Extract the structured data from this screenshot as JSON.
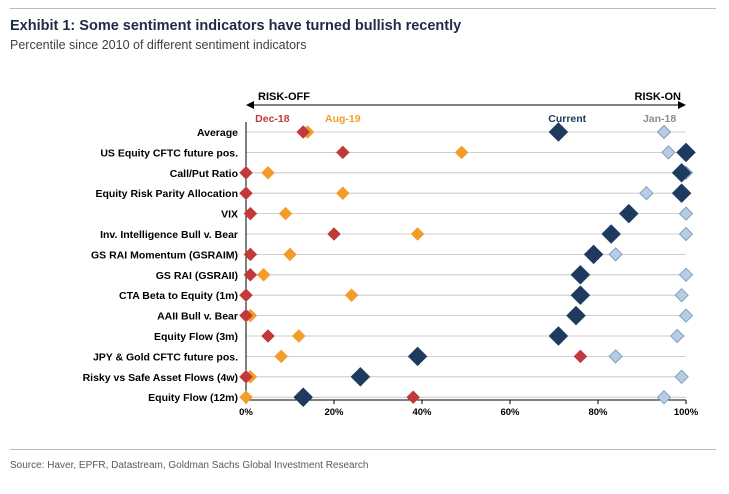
{
  "title": "Exhibit 1: Some sentiment indicators have turned bullish recently",
  "subtitle": "Percentile since 2010 of different sentiment indicators",
  "source": "Source: Haver, EPFR, Datastream, Goldman Sachs Global Investment Research",
  "colors": {
    "dec18": "#c0393b",
    "aug19": "#f39c2a",
    "current": "#1f3a5f",
    "jan18": "#b8cce4",
    "jan18_stroke": "#7f9fbf",
    "grid": "#bfbfbf"
  },
  "chart_data": {
    "type": "scatter",
    "title": "Exhibit 1: Some sentiment indicators have turned bullish recently",
    "subtitle": "Percentile since 2010 of different sentiment indicators",
    "x_range": [
      0,
      100
    ],
    "x_ticks": [
      "0%",
      "20%",
      "40%",
      "60%",
      "80%",
      "100%"
    ],
    "x_tick_values": [
      0,
      20,
      40,
      60,
      80,
      100
    ],
    "grid": true,
    "direction_left": "RISK-OFF",
    "direction_right": "RISK-ON",
    "categories": [
      "Average",
      "US Equity CFTC future pos.",
      "Call/Put Ratio",
      "Equity Risk Parity Allocation",
      "VIX",
      "Inv. Intelligence Bull v. Bear",
      "GS RAI Momentum (GSRAIM)",
      "GS RAI (GSRAII)",
      "CTA Beta to Equity (1m)",
      "AAII Bull v. Bear",
      "Equity Flow (3m)",
      "JPY & Gold CFTC future pos.",
      "Risky vs Safe Asset Flows (4w)",
      "Equity Flow (12m)"
    ],
    "series": [
      {
        "name": "Dec-18",
        "values": [
          13,
          22,
          0,
          0,
          1,
          20,
          1,
          1,
          0,
          0,
          5,
          76,
          0,
          38
        ]
      },
      {
        "name": "Aug-19",
        "values": [
          14,
          49,
          5,
          22,
          9,
          39,
          10,
          4,
          24,
          1,
          12,
          8,
          1,
          0
        ]
      },
      {
        "name": "Current",
        "values": [
          71,
          100,
          99,
          99,
          87,
          83,
          79,
          76,
          76,
          75,
          71,
          39,
          26,
          13
        ]
      },
      {
        "name": "Jan-18",
        "values": [
          95,
          96,
          100,
          91,
          100,
          100,
          84,
          100,
          99,
          100,
          98,
          84,
          99,
          95
        ]
      }
    ],
    "legend_labels": [
      {
        "name": "Dec-18",
        "x": 6
      },
      {
        "name": "Aug-19",
        "x": 22
      },
      {
        "name": "Current",
        "x": 73
      },
      {
        "name": "Jan-18",
        "x": 94
      }
    ]
  }
}
